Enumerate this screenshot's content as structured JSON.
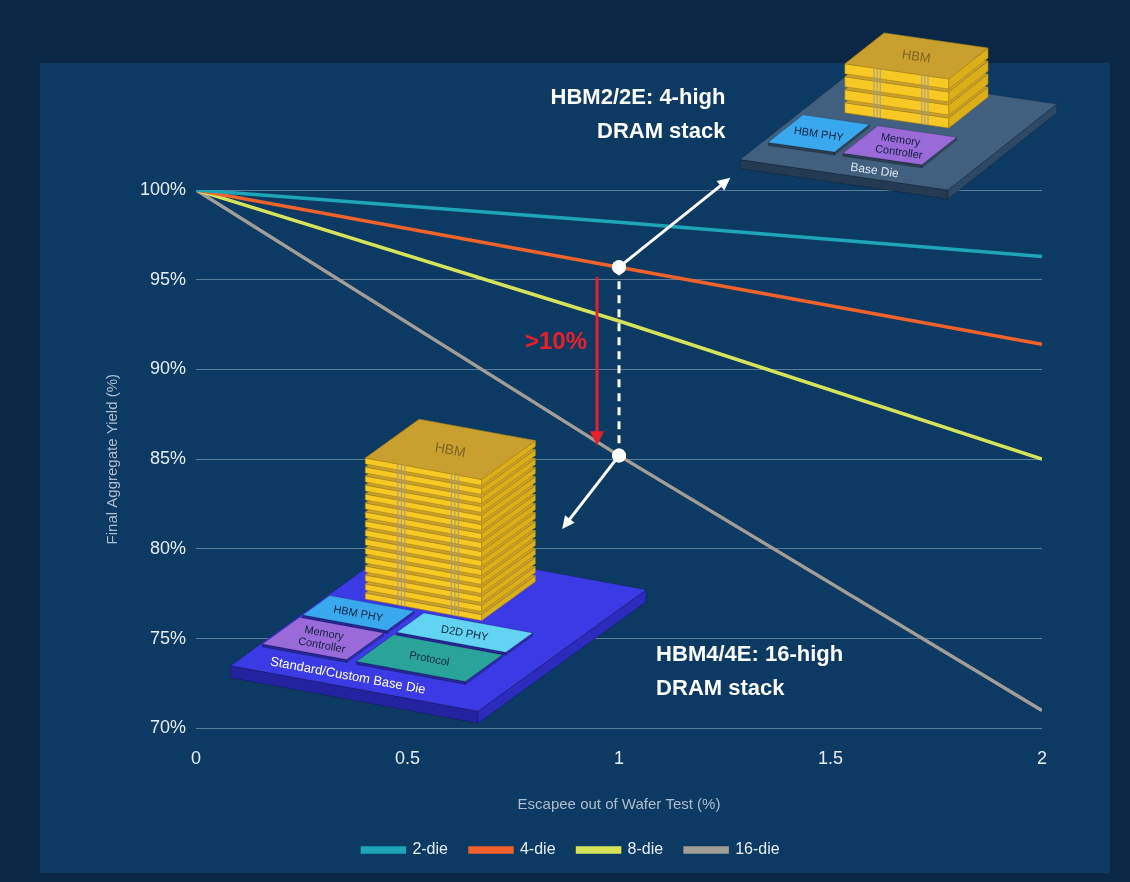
{
  "chart_data": {
    "type": "line",
    "x": [
      0,
      1,
      2
    ],
    "series": [
      {
        "name": "2-die",
        "color": "#1fa5b8",
        "values": [
          100,
          98.2,
          96.3
        ]
      },
      {
        "name": "4-die",
        "color": "#f0622a",
        "values": [
          100,
          95.7,
          91.4
        ]
      },
      {
        "name": "8-die",
        "color": "#d6e35a",
        "values": [
          100,
          92.7,
          85
        ]
      },
      {
        "name": "16-die",
        "color": "#a39d97",
        "values": [
          100,
          85.2,
          71
        ]
      }
    ],
    "xlabel": "Escapee out of Wafer Test (%)",
    "ylabel": "Final Aggregate Yield (%)",
    "xlim": [
      0,
      2
    ],
    "xticks": [
      0,
      0.5,
      1,
      1.5,
      2
    ],
    "ylim": [
      70,
      100
    ],
    "yticks": [
      {
        "value": 70,
        "label": "70%"
      },
      {
        "value": 75,
        "label": "75%"
      },
      {
        "value": 80,
        "label": "80%"
      },
      {
        "value": 85,
        "label": "85%"
      },
      {
        "value": 90,
        "label": "90%"
      },
      {
        "value": 95,
        "label": "95%"
      },
      {
        "value": 100,
        "label": "100%"
      }
    ],
    "grid": true,
    "legend": "bottom",
    "annotations": [
      {
        "text": ">10%",
        "x": 1,
        "from_series": "4-die",
        "to_series": "16-die",
        "color": "#e8202a"
      }
    ],
    "illustrations": [
      {
        "caption": "HBM2/2E: 4-high DRAM stack",
        "layers": 4,
        "stack_label": "HBM",
        "blocks": [
          "HBM PHY",
          "Memory Controller"
        ],
        "base_label": "Base Die",
        "points_from": {
          "series": "4-die",
          "x": 1
        }
      },
      {
        "caption": "HBM4/4E: 16-high DRAM stack",
        "layers": 16,
        "stack_label": "HBM",
        "blocks": [
          "HBM PHY",
          "D2D PHY",
          "Memory Controller",
          "Protocol"
        ],
        "base_label": "Standard/Custom Base Die",
        "points_from": {
          "series": "16-die",
          "x": 1
        }
      }
    ]
  }
}
